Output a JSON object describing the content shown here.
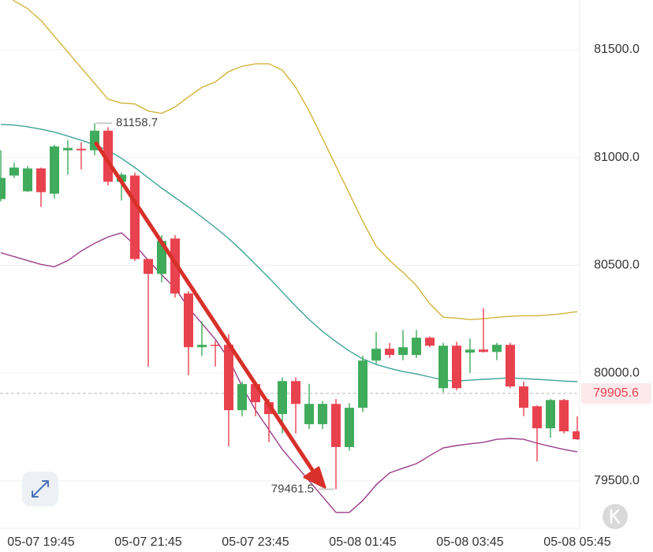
{
  "chart_data": {
    "type": "candlestick",
    "categories": [
      null,
      null,
      null,
      "05-07 19:45",
      null,
      null,
      null,
      null,
      null,
      null,
      null,
      "05-07 21:45",
      null,
      null,
      null,
      null,
      null,
      null,
      null,
      "05-07 23:45",
      null,
      null,
      null,
      null,
      null,
      null,
      null,
      "05-08 01:45",
      null,
      null,
      null,
      null,
      null,
      null,
      null,
      "05-08 03:45",
      null,
      null,
      null,
      null,
      null,
      null,
      null,
      "05-08 05:45"
    ],
    "open": [
      80807,
      80916,
      80843,
      80949,
      80832,
      81033,
      81040,
      81033,
      81124,
      80887,
      80916,
      80529,
      80460,
      80624,
      80369,
      80120,
      80131,
      80131,
      79828,
      79949,
      79865,
      79810,
      79963,
      79763,
      79763,
      79857,
      79657,
      79839,
      80058,
      80113,
      80084,
      80084,
      80164,
      79930,
      80127,
      80095,
      80109,
      80098,
      80131,
      79938,
      79846,
      79744,
      79875,
      79730
    ],
    "high": [
      81033,
      80975,
      80960,
      80953,
      81058,
      81080,
      81070,
      81158.7,
      81140,
      80930,
      80930,
      80530,
      80640,
      80640,
      80380,
      80240,
      80150,
      80180,
      79960,
      79960,
      79880,
      79980,
      79980,
      79950,
      79870,
      79880,
      79860,
      80080,
      80190,
      80140,
      80200,
      80200,
      80170,
      80140,
      80145,
      80160,
      80300,
      80140,
      80140,
      79960,
      79850,
      79880,
      79880,
      79800
    ],
    "low": [
      80796,
      80905,
      80840,
      80770,
      80810,
      80920,
      80945,
      81010,
      80870,
      80800,
      80520,
      80030,
      80420,
      80350,
      79990,
      80080,
      80030,
      79660,
      79800,
      79800,
      79680,
      79720,
      79720,
      79740,
      79740,
      79461.5,
      79640,
      79820,
      80040,
      80070,
      80060,
      80070,
      80120,
      79910,
      79920,
      80000,
      80095,
      80060,
      79930,
      79800,
      79590,
      79700,
      79720,
      79690
    ],
    "close": [
      80905,
      80953,
      80949,
      80839,
      81051,
      81044,
      81033,
      81124,
      80887,
      80920,
      80529,
      80460,
      80613,
      80369,
      80120,
      80131,
      80128,
      79828,
      79949,
      79865,
      79810,
      79963,
      79857,
      79857,
      79857,
      79657,
      79839,
      80058,
      80113,
      80084,
      80120,
      80164,
      80127,
      80127,
      79930,
      80109,
      80098,
      80131,
      79938,
      79839,
      79744,
      79875,
      79730,
      79693
    ],
    "up_color": "#3fab5b",
    "down_color": "#e8424f",
    "lines": [
      {
        "color": "#d2b43a",
        "values": [
          81781,
          81726,
          81690,
          81635,
          81562,
          81489,
          81416,
          81343,
          81270,
          81252,
          81248,
          81215,
          81204,
          81234,
          81281,
          81325,
          81350,
          81398,
          81423,
          81434,
          81434,
          81405,
          81325,
          81215,
          81088,
          80960,
          80832,
          80704,
          80588,
          80522,
          80467,
          80405,
          80321,
          80259,
          80255,
          80248,
          80252,
          80259,
          80263,
          80266,
          80266,
          80270,
          80277,
          80285
        ]
      },
      {
        "color": "#3fa596",
        "values": [
          81153,
          81150,
          81142,
          81131,
          81117,
          81099,
          81080,
          81058,
          81033,
          80996,
          80953,
          80905,
          80858,
          80814,
          80770,
          80723,
          80675,
          80624,
          80566,
          80504,
          80442,
          80376,
          80310,
          80248,
          80193,
          80146,
          80102,
          80066,
          80040,
          80022,
          80007,
          79996,
          79982,
          79967,
          79963,
          79967,
          79971,
          79974,
          79978,
          79974,
          79971,
          79967,
          79963,
          79960
        ]
      },
      {
        "color": "#9b3d88",
        "values": [
          80558,
          80540,
          80522,
          80504,
          80493,
          80522,
          80566,
          80602,
          80631,
          80650,
          80595,
          80522,
          80456,
          80394,
          80303,
          80230,
          80157,
          80066,
          79938,
          79828,
          79737,
          79646,
          79573,
          79500,
          79427,
          79354,
          79354,
          79409,
          79482,
          79537,
          79559,
          79580,
          79617,
          79653,
          79664,
          79672,
          79679,
          79693,
          79697,
          79693,
          79675,
          79660,
          79646,
          79635
        ]
      }
    ],
    "last_price": 79905.6,
    "ylim": [
      79280,
      81730
    ],
    "yticks": [
      {
        "value": 79500,
        "label": "79500.0"
      },
      {
        "value": 80000,
        "label": "80000.0"
      },
      {
        "value": 80500,
        "label": "80500.0"
      },
      {
        "value": 81000,
        "label": "81000.0"
      },
      {
        "value": 81500,
        "label": "81500.0"
      }
    ],
    "grid": true
  }
}
